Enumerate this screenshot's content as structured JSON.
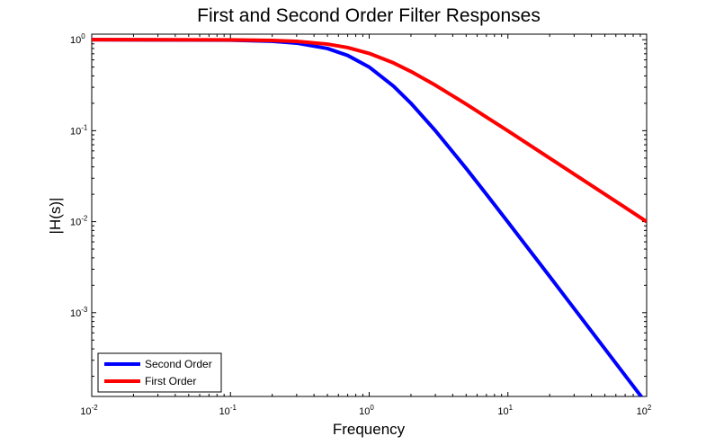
{
  "chart_data": {
    "type": "line",
    "title": "First and Second Order Filter Responses",
    "xlabel": "Frequency",
    "ylabel": "|H(s)|",
    "xscale": "log",
    "yscale": "log",
    "xlim": [
      0.01,
      100
    ],
    "ylim": [
      0.00012,
      1.15
    ],
    "grid": false,
    "legend_position": "bottom-left",
    "x_ticks": [
      {
        "base": "10",
        "exp": "-2"
      },
      {
        "base": "10",
        "exp": "-1"
      },
      {
        "base": "10",
        "exp": "0"
      },
      {
        "base": "10",
        "exp": "1"
      },
      {
        "base": "10",
        "exp": "2"
      }
    ],
    "y_ticks": [
      {
        "base": "10",
        "exp": "-3"
      },
      {
        "base": "10",
        "exp": "-2"
      },
      {
        "base": "10",
        "exp": "-1"
      },
      {
        "base": "10",
        "exp": "0"
      }
    ],
    "x": [
      0.01,
      0.1,
      0.2,
      0.3,
      0.5,
      0.7,
      1,
      1.5,
      2,
      3,
      5,
      7,
      10,
      20,
      30,
      50,
      70,
      100
    ],
    "series": [
      {
        "name": "Second Order",
        "color": "#0000ff",
        "values": [
          0.9999,
          0.99,
          0.962,
          0.917,
          0.8,
          0.671,
          0.5,
          0.308,
          0.2,
          0.1,
          0.0385,
          0.02,
          0.0099,
          0.0025,
          0.00111,
          0.0004,
          0.000204,
          0.0001
        ]
      },
      {
        "name": "First Order",
        "color": "#ff0000",
        "values": [
          0.99995,
          0.995,
          0.981,
          0.958,
          0.894,
          0.819,
          0.707,
          0.555,
          0.447,
          0.316,
          0.196,
          0.141,
          0.0995,
          0.0499,
          0.0333,
          0.02,
          0.0143,
          0.01
        ]
      }
    ]
  }
}
